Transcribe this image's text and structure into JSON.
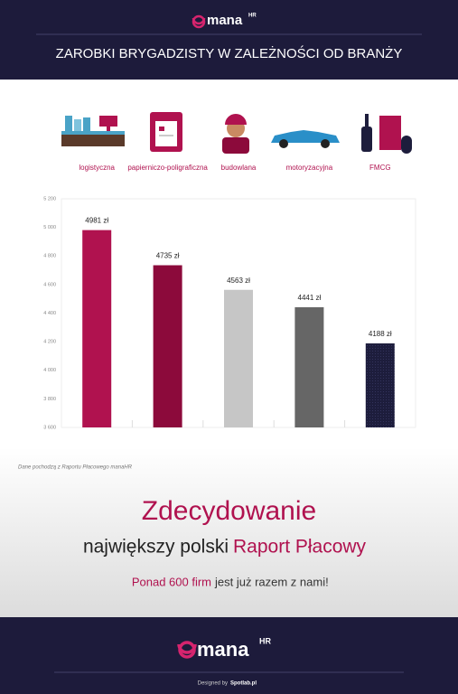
{
  "header": {
    "logo": "mana",
    "logo_sup": "HR",
    "title": "ZAROBKI BRYGADZISTY W ZALEŻNOŚCI OD BRANŻY"
  },
  "chart_data": {
    "type": "bar",
    "categories": [
      "logistyczna",
      "papierniczo-poligraficzna",
      "budowlana",
      "motoryzacyjna",
      "FMCG"
    ],
    "values": [
      4981,
      4735,
      4563,
      4441,
      4188
    ],
    "value_labels": [
      "4981 zł",
      "4735 zł",
      "4563 zł",
      "4441 zł",
      "4188 zł"
    ],
    "colors": [
      "#b0124f",
      "#8c0a3b",
      "#c6c6c6",
      "#666666",
      "#1d1d3c"
    ],
    "ylim": [
      3600,
      5200
    ],
    "yticks": [
      {
        "value": 3600,
        "label": "3 600"
      },
      {
        "value": 3800,
        "label": "3 800"
      },
      {
        "value": 4000,
        "label": "4 000"
      },
      {
        "value": 4200,
        "label": "4 200"
      },
      {
        "value": 4400,
        "label": "4 400"
      },
      {
        "value": 4600,
        "label": "4 600"
      },
      {
        "value": 4800,
        "label": "4 800"
      },
      {
        "value": 5000,
        "label": "5 000"
      },
      {
        "value": 5200,
        "label": "5 200"
      }
    ],
    "grid": false
  },
  "source": "Dane pochodzą z Raportu Płacowego manaHR",
  "promo": {
    "headline": "Zdecydowanie",
    "line2_a": "największy polski",
    "line2_b": "Raport Płacowy",
    "line3_a": "Ponad 600 firm",
    "line3_b": "jest już razem z nami!"
  },
  "footer": {
    "logo": "mana",
    "logo_sup": "HR",
    "credit_a": "Designed by",
    "credit_b": "Spotlab.pl"
  }
}
